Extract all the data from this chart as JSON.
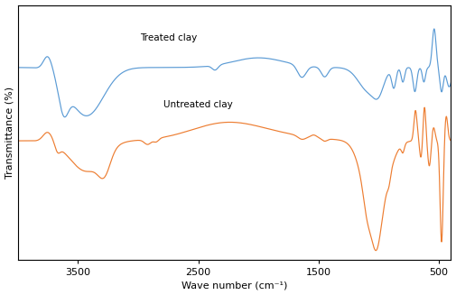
{
  "xlabel": "Wave number (cm⁻¹)",
  "ylabel_text": "Transmittance (%)",
  "background_color": "#ffffff",
  "treated_color": "#5b9bd5",
  "untreated_color": "#ed7d31",
  "treated_label": "Treated clay",
  "untreated_label": "Untreated clay",
  "xticks": [
    3500,
    2500,
    1500,
    500
  ],
  "xlim": [
    4000,
    400
  ]
}
